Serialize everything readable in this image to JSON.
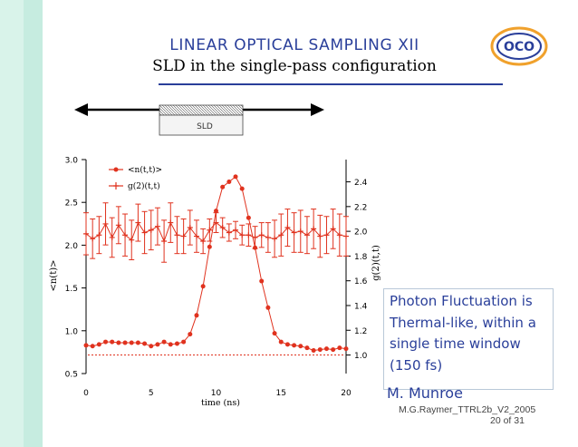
{
  "slide": {
    "title": "LINEAR OPTICAL SAMPLING XII",
    "subtitle": "SLD in the single-pass configuration",
    "note": "Photon Fluctuation is Thermal-like, within a single time window (150 fs)",
    "author": "M. Munroe",
    "footer": "M.G.Raymer_TTRL2b_V2_2005",
    "page": "20 of 31",
    "logo_text": "OCO",
    "diagram_label": "SLD"
  },
  "colors": {
    "title": "#2a3f9a",
    "series": "#e0321e",
    "left_bar": "#d9f3ea",
    "logo_ring": "#f0a12c"
  },
  "chart_data": {
    "type": "line",
    "x": [
      0.0,
      0.5,
      1.0,
      1.5,
      2.0,
      2.5,
      3.0,
      3.5,
      4.0,
      4.5,
      5.0,
      5.5,
      6.0,
      6.5,
      7.0,
      7.5,
      8.0,
      8.5,
      9.0,
      9.5,
      10.0,
      10.5,
      11.0,
      11.5,
      12.0,
      12.5,
      13.0,
      13.5,
      14.0,
      14.5,
      15.0,
      15.5,
      16.0,
      16.5,
      17.0,
      17.5,
      18.0,
      18.5,
      19.0,
      19.5,
      20.0
    ],
    "xlabel": "time (ns)",
    "xlim": [
      0,
      20
    ],
    "xticks": [
      0,
      5,
      10,
      15,
      20
    ],
    "left_axis": {
      "label": "<n(t)>",
      "ylim": [
        0.5,
        3.0
      ],
      "ticks": [
        "0.5",
        "1.0",
        "1.5",
        "2.0",
        "2.5",
        "3.0"
      ]
    },
    "right_axis": {
      "label": "g(2)(t,t)",
      "ylim": [
        0.85,
        2.58
      ],
      "ticks": [
        "1.0",
        "1.2",
        "1.4",
        "1.6",
        "1.8",
        "2.0",
        "2.2",
        "2.4"
      ]
    },
    "series": [
      {
        "name": "<n(t,t)>",
        "axis": "left",
        "marker": "circle",
        "values": [
          0.83,
          0.82,
          0.84,
          0.87,
          0.87,
          0.86,
          0.86,
          0.86,
          0.86,
          0.85,
          0.82,
          0.84,
          0.87,
          0.84,
          0.85,
          0.87,
          0.96,
          1.18,
          1.52,
          1.98,
          2.4,
          2.68,
          2.74,
          2.8,
          2.66,
          2.32,
          1.97,
          1.58,
          1.27,
          0.97,
          0.87,
          0.84,
          0.83,
          0.82,
          0.8,
          0.77,
          0.78,
          0.79,
          0.78,
          0.8,
          0.79
        ]
      },
      {
        "name": "g(2)(t,t)",
        "axis": "right",
        "marker": "plus",
        "values": [
          1.98,
          1.94,
          1.97,
          2.06,
          1.95,
          2.05,
          1.97,
          1.93,
          2.07,
          1.99,
          2.01,
          2.04,
          1.92,
          2.07,
          1.97,
          1.96,
          2.03,
          1.96,
          1.92,
          2.01,
          2.07,
          2.03,
          1.99,
          2.01,
          1.97,
          1.97,
          1.95,
          1.97,
          1.95,
          1.94,
          1.97,
          2.03,
          1.99,
          2.0,
          1.97,
          2.02,
          1.96,
          1.97,
          2.02,
          1.97,
          1.96
        ],
        "error": [
          0.17,
          0.16,
          0.15,
          0.17,
          0.16,
          0.15,
          0.17,
          0.16,
          0.15,
          0.17,
          0.16,
          0.15,
          0.17,
          0.16,
          0.15,
          0.14,
          0.14,
          0.13,
          0.1,
          0.09,
          0.08,
          0.08,
          0.07,
          0.07,
          0.08,
          0.09,
          0.09,
          0.1,
          0.12,
          0.15,
          0.17,
          0.15,
          0.16,
          0.17,
          0.15,
          0.16,
          0.17,
          0.15,
          0.16,
          0.17,
          0.16
        ]
      }
    ],
    "reference_line": {
      "axis": "right",
      "value": 1.0,
      "style": "dotted"
    },
    "legend_position": "top-left",
    "grid": false
  }
}
